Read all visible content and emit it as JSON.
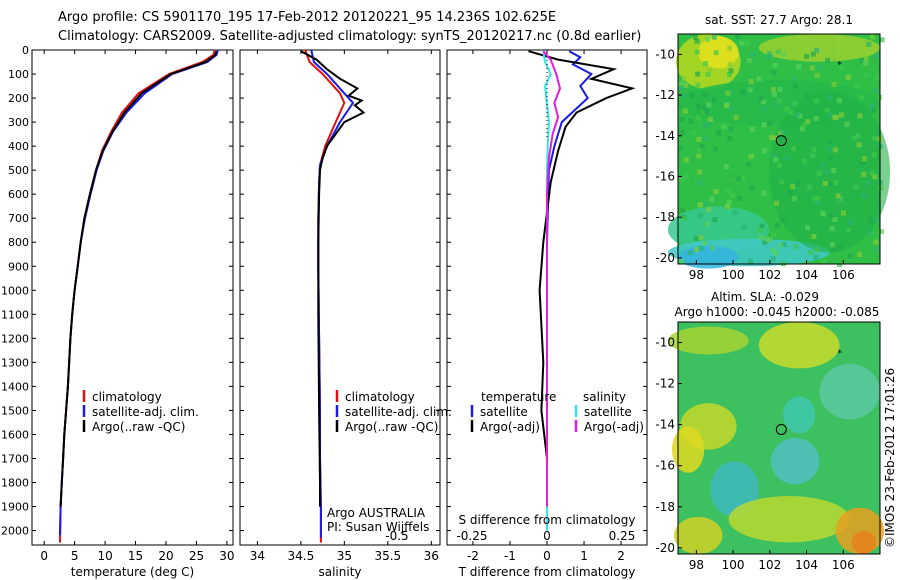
{
  "header": {
    "line1": "Argo profile: CS 5901170_195 17-Feb-2012 20120221_95 14.236S 102.625E",
    "line2": "Climatology: CARS2009. Satellite-adjusted climatology: synTS_20120217.nc (0.8d earlier)"
  },
  "colors": {
    "climatology": "#e01010",
    "satellite": "#1a1ae6",
    "argo": "#000000",
    "satellite_s": "#33e6e6",
    "argo_s": "#e61ae6"
  },
  "footer": {
    "stamp": "©IMOS 23-Feb-2012 17:01:26"
  },
  "chart_data": [
    {
      "type": "line",
      "id": "temperature",
      "xlabel": "temperature (deg C)",
      "ylabel": "",
      "xlim": [
        -2,
        31
      ],
      "ylim": [
        2060,
        0
      ],
      "xticks": [
        0,
        5,
        10,
        15,
        20,
        25,
        30
      ],
      "yticks": [
        0,
        100,
        200,
        300,
        400,
        500,
        600,
        700,
        800,
        900,
        1000,
        1100,
        1200,
        1300,
        1400,
        1500,
        1600,
        1700,
        1800,
        1900,
        2000
      ],
      "legend": [
        "climatology",
        "satellite-adj. clim.",
        "Argo(..raw -QC)"
      ],
      "series": [
        {
          "name": "climatology",
          "color": "#e01010",
          "x": [
            28.0,
            27.8,
            26.0,
            20.5,
            15.5,
            12.8,
            11.0,
            9.5,
            8.5,
            7.5,
            6.6,
            6.0,
            5.5,
            5.0,
            4.6,
            4.3,
            3.9,
            3.6,
            3.3,
            3.1,
            2.9,
            2.7,
            2.6
          ],
          "y": [
            0,
            20,
            50,
            100,
            180,
            260,
            340,
            420,
            500,
            600,
            700,
            800,
            900,
            1000,
            1100,
            1200,
            1400,
            1500,
            1600,
            1700,
            1800,
            1900,
            2050
          ]
        },
        {
          "name": "satellite-adj. clim.",
          "color": "#1a1ae6",
          "x": [
            28.5,
            28.3,
            26.8,
            21.0,
            16.5,
            13.5,
            11.3,
            9.7,
            8.6,
            7.6,
            6.7,
            6.0,
            5.5,
            5.0,
            4.6,
            4.3,
            3.9,
            3.6,
            3.3,
            3.1,
            2.9,
            2.7,
            2.6
          ],
          "y": [
            0,
            20,
            50,
            100,
            180,
            260,
            340,
            420,
            500,
            600,
            700,
            800,
            900,
            1000,
            1100,
            1200,
            1400,
            1500,
            1600,
            1700,
            1800,
            1900,
            2020
          ]
        },
        {
          "name": "Argo(..raw -QC)",
          "color": "#000000",
          "x": [
            28.3,
            28.1,
            26.5,
            20.8,
            16.0,
            13.2,
            11.2,
            9.6,
            8.5,
            7.5,
            6.6,
            6.0,
            5.5,
            5.0,
            4.6,
            4.3,
            3.9,
            3.6,
            3.3,
            3.1,
            2.9,
            2.7
          ],
          "y": [
            5,
            20,
            50,
            100,
            180,
            260,
            340,
            420,
            500,
            600,
            700,
            800,
            900,
            1000,
            1100,
            1200,
            1400,
            1500,
            1600,
            1700,
            1800,
            1900
          ]
        }
      ]
    },
    {
      "type": "line",
      "id": "salinity",
      "xlabel": "salinity",
      "xlim": [
        33.8,
        36.1
      ],
      "ylim": [
        2060,
        0
      ],
      "xticks": [
        34,
        34.5,
        35,
        35.5,
        36
      ],
      "legend": [
        "climatology",
        "satellite-adj. clim.",
        "Argo(..raw -QC)"
      ],
      "annotations": [
        "Argo AUSTRALIA",
        "PI: Susan Wijffels"
      ],
      "series": [
        {
          "name": "climatology",
          "color": "#e01010",
          "x": [
            34.55,
            34.6,
            34.75,
            34.95,
            35.0,
            34.9,
            34.78,
            34.72,
            34.71,
            34.7,
            34.7,
            34.71,
            34.72,
            34.72,
            34.73,
            34.73,
            34.73
          ],
          "y": [
            0,
            50,
            100,
            180,
            220,
            300,
            400,
            480,
            550,
            700,
            900,
            1200,
            1500,
            1700,
            1900,
            2000,
            2050
          ]
        },
        {
          "name": "satellite-adj. clim.",
          "color": "#1a1ae6",
          "x": [
            34.62,
            34.65,
            34.8,
            35.0,
            35.1,
            34.95,
            34.8,
            34.72,
            34.71,
            34.7,
            34.7,
            34.71,
            34.72,
            34.72,
            34.73,
            34.73,
            34.73
          ],
          "y": [
            0,
            50,
            100,
            180,
            220,
            300,
            400,
            480,
            550,
            700,
            900,
            1200,
            1500,
            1700,
            1900,
            2000,
            2030
          ]
        },
        {
          "name": "Argo(..raw -QC)",
          "color": "#000000",
          "x": [
            34.5,
            34.68,
            34.8,
            34.95,
            35.15,
            35.05,
            35.2,
            35.12,
            35.22,
            35.0,
            34.9,
            34.8,
            34.75,
            34.72,
            34.71,
            34.7,
            34.7,
            34.71,
            34.72,
            34.72
          ],
          "y": [
            5,
            40,
            80,
            120,
            160,
            190,
            210,
            230,
            260,
            300,
            350,
            400,
            450,
            500,
            600,
            800,
            1100,
            1500,
            1800,
            1900
          ]
        }
      ]
    },
    {
      "type": "line",
      "id": "differences",
      "xlabel": "T difference from climatology",
      "xlabel_top": "S difference from climatology",
      "xlim": [
        -2.7,
        2.7
      ],
      "ylim": [
        2060,
        0
      ],
      "xticks": [
        -2,
        -1,
        0,
        1,
        2
      ],
      "xticks_s": [
        -0.5,
        -0.25,
        0,
        0.25,
        0.5
      ],
      "legend_left_title": "temperature",
      "legend_right_title": "salinity",
      "legend": [
        "satellite",
        "Argo(-adj)",
        "satellite",
        "Argo(-adj)"
      ],
      "series": [
        {
          "name": "T satellite",
          "color": "#1a1ae6",
          "x": [
            0.6,
            0.9,
            0.7,
            1.2,
            0.9,
            1.1,
            0.4,
            0.2,
            0.05,
            0.0,
            0.0,
            0.0
          ],
          "y": [
            5,
            30,
            60,
            100,
            150,
            200,
            300,
            400,
            500,
            800,
            1500,
            2000
          ]
        },
        {
          "name": "T Argo(-adj)",
          "color": "#000000",
          "x": [
            -0.5,
            0.3,
            1.8,
            1.2,
            2.3,
            1.6,
            0.8,
            0.5,
            0.3,
            0.1,
            -0.1,
            -0.2,
            -0.1,
            -0.15,
            0.0,
            0.0
          ],
          "y": [
            5,
            40,
            80,
            120,
            160,
            200,
            260,
            320,
            420,
            550,
            800,
            1000,
            1300,
            1500,
            1700,
            1900
          ]
        },
        {
          "name": "S satellite",
          "color": "#33e6e6",
          "x": [
            -0.1,
            -0.05,
            0.1,
            -0.05,
            -0.02,
            0.05,
            0.02,
            0.0,
            0.0,
            0.0,
            0.0
          ],
          "y": [
            5,
            50,
            100,
            150,
            200,
            300,
            400,
            500,
            800,
            1500,
            2000
          ]
        },
        {
          "name": "S Argo(-adj)",
          "color": "#e61ae6",
          "x": [
            -0.1,
            0.1,
            0.25,
            0.35,
            0.2,
            0.3,
            0.15,
            0.05,
            0.0,
            0.0,
            0.0
          ],
          "y": [
            5,
            40,
            100,
            160,
            220,
            280,
            350,
            450,
            600,
            1000,
            1900
          ]
        }
      ]
    },
    {
      "type": "heatmap",
      "id": "sst_map",
      "title": "sat. SST: 27.7  Argo: 28.1",
      "xticks": [
        98,
        100,
        102,
        104,
        106
      ],
      "yticks": [
        -10,
        -12,
        -14,
        -16,
        -18,
        -20
      ],
      "xlim": [
        97,
        108
      ],
      "ylim": [
        -20.3,
        -9.0
      ],
      "profile_marker": {
        "lon": 102.625,
        "lat": -14.236
      }
    },
    {
      "type": "heatmap",
      "id": "sla_map",
      "title": "Altim. SLA: -0.029",
      "subtitle": "Argo h1000: -0.045  h2000: -0.085",
      "xticks": [
        98,
        100,
        102,
        104,
        106
      ],
      "yticks": [
        -10,
        -12,
        -14,
        -16,
        -18,
        -20
      ],
      "xlim": [
        97,
        108
      ],
      "ylim": [
        -20.3,
        -9.0
      ],
      "profile_marker": {
        "lon": 102.625,
        "lat": -14.236
      }
    }
  ]
}
